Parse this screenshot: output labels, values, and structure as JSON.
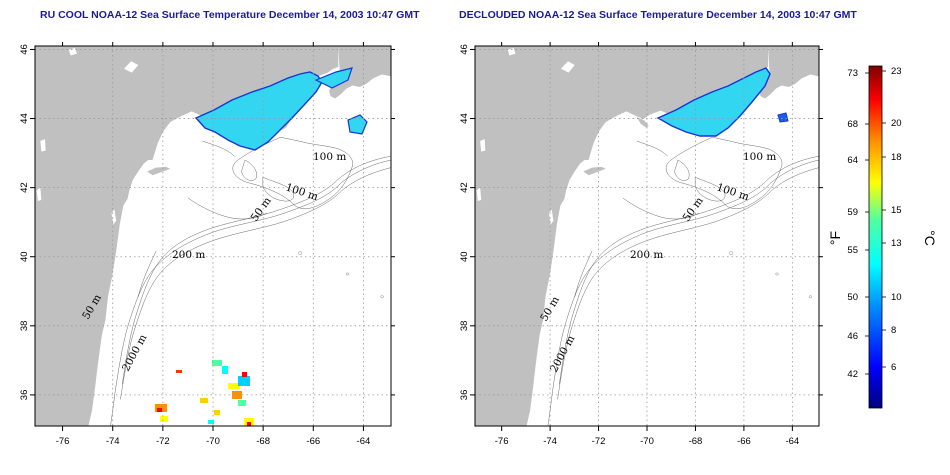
{
  "panels": [
    {
      "title": "RU COOL NOAA-12 Sea Surface Temperature December 14, 2003 10:47 GMT",
      "contour_labels": [
        "100 m",
        "100 m",
        "50 m",
        "200 m",
        "50 m",
        "2000 m"
      ]
    },
    {
      "title": "DECLOUDED NOAA-12 Sea Surface Temperature December 14, 2003 10:47 GMT",
      "contour_labels": [
        "100 m",
        "100 m",
        "50 m",
        "200 m",
        "50 m",
        "2000 m"
      ]
    }
  ],
  "axes": {
    "longitude_ticks": [
      "-76",
      "-74",
      "-72",
      "-70",
      "-68",
      "-66",
      "-64"
    ],
    "latitude_ticks": [
      "46",
      "44",
      "42",
      "40",
      "38",
      "36"
    ],
    "lon_values": [
      -76,
      -74,
      -72,
      -70,
      -68,
      -66,
      -64
    ],
    "lat_values": [
      46,
      44,
      42,
      40,
      38,
      36
    ],
    "lon_range": [
      -77.1,
      -62.9
    ],
    "lat_range": [
      35.1,
      46.1
    ],
    "grid": "dotted"
  },
  "colorbar": {
    "fahrenheit_ticks": [
      "73",
      "68",
      "64",
      "59",
      "55",
      "50",
      "46",
      "42"
    ],
    "celsius_ticks": [
      "23",
      "20",
      "18",
      "15",
      "13",
      "10",
      "8",
      "6"
    ],
    "fahrenheit_label": "°F",
    "celsius_label": "°C",
    "colormap": [
      "#000080",
      "#0000ff",
      "#0090ff",
      "#00ffff",
      "#50ffa0",
      "#ffff00",
      "#ff9000",
      "#ff0000",
      "#800000"
    ]
  },
  "colors": {
    "land": "#c0c0c0",
    "ocean": "#ffffff",
    "sst_cold": "#33d6f0",
    "sst_edge": "#1535d8",
    "contour": "#1a1a1a"
  }
}
